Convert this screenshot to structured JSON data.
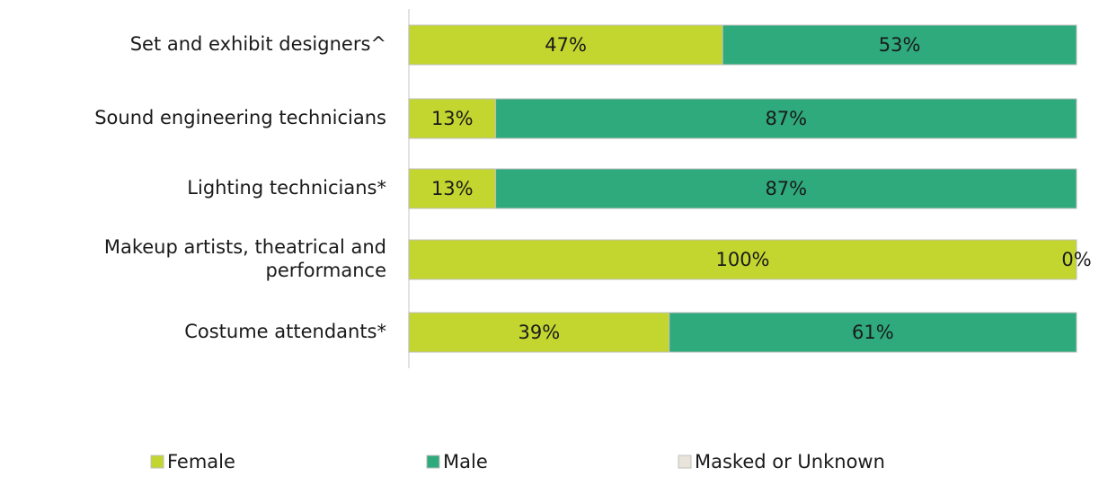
{
  "chart_data": {
    "type": "stacked-bar-horizontal",
    "categories": [
      "Set and exhibit designers^",
      "Sound engineering technicians",
      "Lighting technicians*",
      "Makeup artists, theatrical and performance",
      "Costume attendants*"
    ],
    "series": [
      {
        "name": "Female",
        "color": "#c3d62f",
        "values": [
          47,
          13,
          13,
          100,
          39
        ],
        "value_labels": [
          "47%",
          "13%",
          "13%",
          "100%",
          "39%"
        ]
      },
      {
        "name": "Male",
        "color": "#2eaa7c",
        "values": [
          53,
          87,
          87,
          0,
          61
        ],
        "value_labels": [
          "53%",
          "87%",
          "87%",
          "0%",
          "61%"
        ]
      },
      {
        "name": "Masked or Unknown",
        "color": "#e8e4da",
        "values": [
          0,
          0,
          0,
          0,
          0
        ]
      }
    ],
    "legend": "bottom"
  }
}
